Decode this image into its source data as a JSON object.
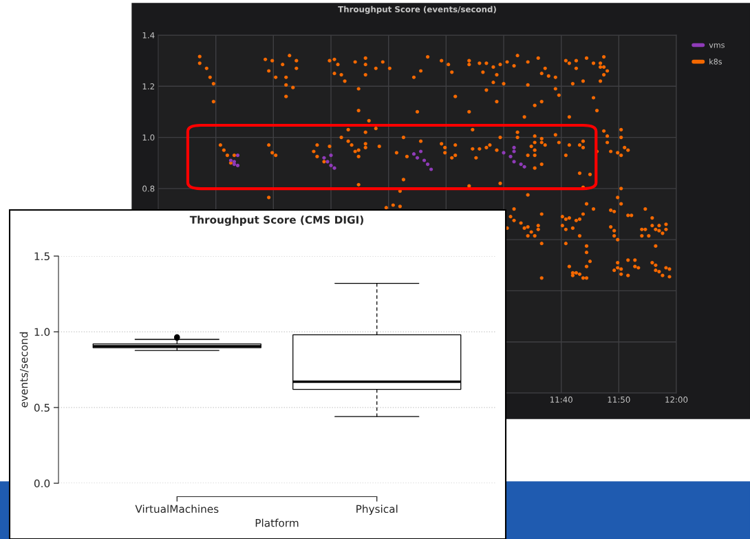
{
  "chart_data": [
    {
      "type": "scatter",
      "title": "Throughput Score (events/second)",
      "xlim": [
        10.5,
        12.0
      ],
      "ylim": [
        0,
        1.4
      ],
      "xticks": [
        {
          "value": 10.6667,
          "label": null
        },
        {
          "value": 10.8333,
          "label": null
        },
        {
          "value": 11.0,
          "label": null
        },
        {
          "value": 11.1667,
          "label": null
        },
        {
          "value": 11.3333,
          "label": null
        },
        {
          "value": 11.5,
          "label": null
        },
        {
          "value": 11.6667,
          "label": "11:40"
        },
        {
          "value": 11.8333,
          "label": "11:50"
        },
        {
          "value": 12.0,
          "label": "12:00"
        }
      ],
      "yticks": [
        {
          "value": 0.0,
          "label": null
        },
        {
          "value": 0.2,
          "label": null
        },
        {
          "value": 0.4,
          "label": null
        },
        {
          "value": 0.6,
          "label": null
        },
        {
          "value": 0.8,
          "label": "0.8"
        },
        {
          "value": 1.0,
          "label": "1.0"
        },
        {
          "value": 1.2,
          "label": "1.2"
        },
        {
          "value": 1.4,
          "label": "1.4"
        }
      ],
      "grid": true,
      "legend": "top right",
      "marker": "circle",
      "series": [
        {
          "name": "vms",
          "color": "#8f3bb8",
          "x": [
            10.71,
            10.72,
            10.73,
            10.73,
            10.72,
            10.98,
            10.99,
            11.0,
            11.01,
            11.0,
            11.24,
            11.25,
            11.26,
            11.27,
            11.28,
            11.29,
            11.5,
            11.53,
            11.52,
            11.53,
            11.55,
            11.56,
            11.53
          ],
          "values": [
            0.91,
            0.905,
            0.93,
            0.89,
            0.895,
            0.92,
            0.905,
            0.93,
            0.88,
            0.89,
            0.935,
            0.92,
            0.945,
            0.91,
            0.895,
            0.875,
            0.94,
            0.96,
            0.925,
            0.905,
            0.895,
            0.885,
            0.945
          ]
        },
        {
          "name": "k8s",
          "color": "#f46800",
          "x": [
            10.62,
            10.62,
            10.64,
            10.65,
            10.66,
            10.66,
            10.68,
            10.69,
            10.7,
            10.71,
            10.72,
            10.82,
            10.83,
            10.84,
            10.82,
            10.81,
            10.82,
            10.83,
            10.86,
            10.84,
            10.87,
            10.88,
            10.9,
            10.9,
            10.87,
            10.89,
            10.87,
            10.96,
            10.95,
            10.96,
            10.98,
            10.996,
            10.996,
            11.01,
            11.02,
            11.01,
            11.03,
            11.04,
            11.07,
            11.1,
            11.1,
            11.1,
            11.08,
            11.08,
            11.11,
            11.13,
            11.13,
            11.15,
            11.17,
            11.05,
            11.03,
            11.05,
            11.06,
            11.07,
            11.08,
            11.08,
            11.1,
            11.1,
            11.1,
            11.14,
            11.08,
            11.21,
            11.21,
            11.19,
            11.22,
            11.2,
            11.16,
            11.18,
            11.2,
            11.32,
            11.34,
            11.35,
            11.36,
            11.25,
            11.28,
            11.26,
            11.24,
            11.4,
            11.4,
            11.43,
            11.44,
            11.45,
            11.47,
            11.47,
            11.45,
            11.48,
            11.4,
            11.48,
            11.49,
            11.5,
            11.51,
            11.53,
            11.54,
            11.57,
            11.57,
            11.6,
            11.61,
            11.62,
            11.63,
            11.65,
            11.65,
            11.66,
            11.59,
            11.61,
            11.56,
            11.68,
            11.69,
            11.71,
            11.71,
            11.74,
            11.76,
            11.78,
            11.79,
            11.78,
            11.79,
            11.8,
            11.79,
            11.78,
            11.7,
            11.73,
            11.76,
            11.77,
            11.69,
            11.26,
            11.32,
            11.33,
            11.33,
            11.36,
            11.36,
            11.35,
            11.41,
            11.41,
            11.42,
            11.43,
            11.45,
            11.46,
            11.48,
            11.49,
            11.4,
            11.49,
            11.54,
            11.54,
            11.58,
            11.59,
            11.59,
            11.61,
            11.61,
            11.62,
            11.59,
            11.59,
            11.57,
            11.61,
            11.59,
            11.65,
            11.66,
            11.69,
            11.68,
            11.73,
            11.72,
            11.73,
            11.72,
            11.75,
            11.73,
            11.79,
            11.8,
            11.8,
            11.81,
            11.83,
            11.84,
            11.84,
            11.85,
            11.86,
            11.84,
            11.84,
            11.83,
            11.84,
            11.77,
            11.57,
            11.53,
            11.52,
            11.53,
            11.55,
            11.56,
            11.57,
            11.58,
            11.57,
            11.6,
            11.6,
            11.59,
            11.61,
            11.61,
            11.61,
            11.51,
            11.67,
            11.67,
            11.68,
            11.69,
            11.68,
            11.7,
            11.71,
            11.73,
            11.72,
            11.74,
            11.76,
            11.72,
            11.68,
            11.74,
            11.74,
            11.75,
            11.74,
            11.69,
            11.7,
            11.71,
            11.72,
            11.73,
            11.74,
            11.7,
            11.81,
            11.82,
            11.81,
            11.82,
            11.82,
            11.83,
            11.86,
            11.87,
            11.91,
            11.93,
            11.93,
            11.9,
            11.91,
            11.9,
            11.92,
            11.94,
            11.95,
            11.95,
            11.96,
            11.97,
            11.97,
            11.94,
            11.83,
            11.82,
            11.83,
            11.84,
            11.84,
            11.86,
            11.86,
            11.88,
            11.88,
            11.89,
            11.93,
            11.94,
            11.94,
            11.95,
            11.96,
            11.97,
            11.98,
            11.98
          ],
          "values": [
            1.316,
            1.29,
            1.27,
            1.235,
            1.21,
            1.14,
            0.97,
            0.95,
            0.93,
            0.9,
            0.93,
            0.97,
            0.94,
            0.93,
            0.765,
            1.305,
            1.26,
            1.3,
            1.285,
            1.235,
            1.235,
            1.32,
            1.3,
            1.27,
            1.205,
            1.195,
            1.16,
            0.97,
            0.945,
            0.925,
            0.905,
            0.965,
            1.3,
            1.305,
            1.285,
            1.25,
            1.245,
            1.22,
            1.295,
            1.285,
            1.31,
            1.245,
            1.19,
            1.105,
            1.065,
            1.035,
            1.27,
            1.295,
            1.27,
            1.03,
            1.0,
            0.985,
            0.97,
            0.945,
            0.95,
            0.925,
            1.02,
            0.975,
            0.96,
            0.965,
            0.815,
            0.835,
            1.0,
            0.94,
            0.925,
            0.79,
            0.725,
            0.735,
            0.73,
            1.3,
            1.285,
            1.255,
            1.16,
            1.1,
            1.315,
            1.26,
            1.235,
            1.3,
            1.285,
            1.29,
            1.255,
            1.29,
            1.275,
            1.215,
            1.185,
            1.245,
            1.1,
            1.14,
            1.285,
            1.21,
            1.295,
            1.28,
            1.32,
            1.295,
            1.205,
            1.31,
            1.25,
            1.27,
            1.24,
            1.235,
            1.19,
            1.165,
            1.125,
            1.14,
            1.08,
            1.3,
            1.29,
            1.3,
            1.27,
            1.31,
            1.29,
            1.29,
            1.315,
            1.275,
            1.275,
            1.26,
            1.245,
            1.22,
            1.21,
            1.22,
            1.155,
            1.105,
            1.08,
            0.985,
            0.975,
            0.96,
            0.94,
            0.97,
            0.93,
            0.92,
            1.03,
            0.955,
            0.92,
            0.955,
            0.96,
            0.97,
            0.95,
            1.0,
            0.81,
            0.82,
            1.0,
            1.02,
            0.965,
            0.98,
            1.005,
            0.995,
            0.98,
            0.97,
            0.95,
            0.93,
            0.93,
            0.895,
            0.88,
            1.01,
            0.98,
            0.97,
            0.93,
            0.985,
            0.97,
            0.96,
            0.86,
            0.855,
            0.805,
            1.025,
            1.005,
            0.98,
            0.945,
            0.94,
            1.0,
            1.03,
            0.96,
            0.95,
            0.93,
            0.8,
            0.765,
            0.74,
            0.945,
            0.775,
            0.72,
            0.69,
            0.675,
            0.665,
            0.645,
            0.65,
            0.63,
            0.615,
            0.655,
            0.64,
            0.615,
            0.7,
            0.585,
            0.45,
            0.645,
            0.69,
            0.655,
            0.68,
            0.685,
            0.64,
            0.645,
            0.675,
            0.7,
            0.68,
            0.74,
            0.72,
            0.615,
            0.585,
            0.575,
            0.55,
            0.515,
            0.495,
            0.495,
            0.47,
            0.47,
            0.465,
            0.45,
            0.45,
            0.46,
            0.715,
            0.71,
            0.65,
            0.635,
            0.615,
            0.6,
            0.695,
            0.695,
            0.72,
            0.685,
            0.655,
            0.64,
            0.64,
            0.615,
            0.615,
            0.64,
            0.655,
            0.635,
            0.625,
            0.64,
            0.66,
            0.575,
            0.51,
            0.48,
            0.49,
            0.465,
            0.485,
            0.46,
            0.52,
            0.52,
            0.495,
            0.49,
            0.51,
            0.5,
            0.48,
            0.475,
            0.46,
            0.49,
            0.485,
            0.455
          ]
        }
      ]
    },
    {
      "type": "box",
      "title": "Throughput Score (CMS DIGI)",
      "xlabel": "Platform",
      "ylabel": "events/second",
      "categories": [
        "VirtualMachines",
        "Physical"
      ],
      "boxes": [
        {
          "low": 0.877,
          "q1": 0.895,
          "median": 0.905,
          "q3": 0.92,
          "high": 0.95,
          "outliers": [
            0.96,
            0.965
          ]
        },
        {
          "low": 0.44,
          "q1": 0.62,
          "median": 0.67,
          "q3": 0.98,
          "high": 1.32
        }
      ],
      "ylim": [
        0.0,
        1.5
      ],
      "yticks": [
        {
          "value": 0.0,
          "label": "0.0"
        },
        {
          "value": 0.5,
          "label": "0.5"
        },
        {
          "value": 1.0,
          "label": "1.0"
        },
        {
          "value": 1.5,
          "label": "1.5"
        }
      ],
      "grid": "y"
    }
  ]
}
